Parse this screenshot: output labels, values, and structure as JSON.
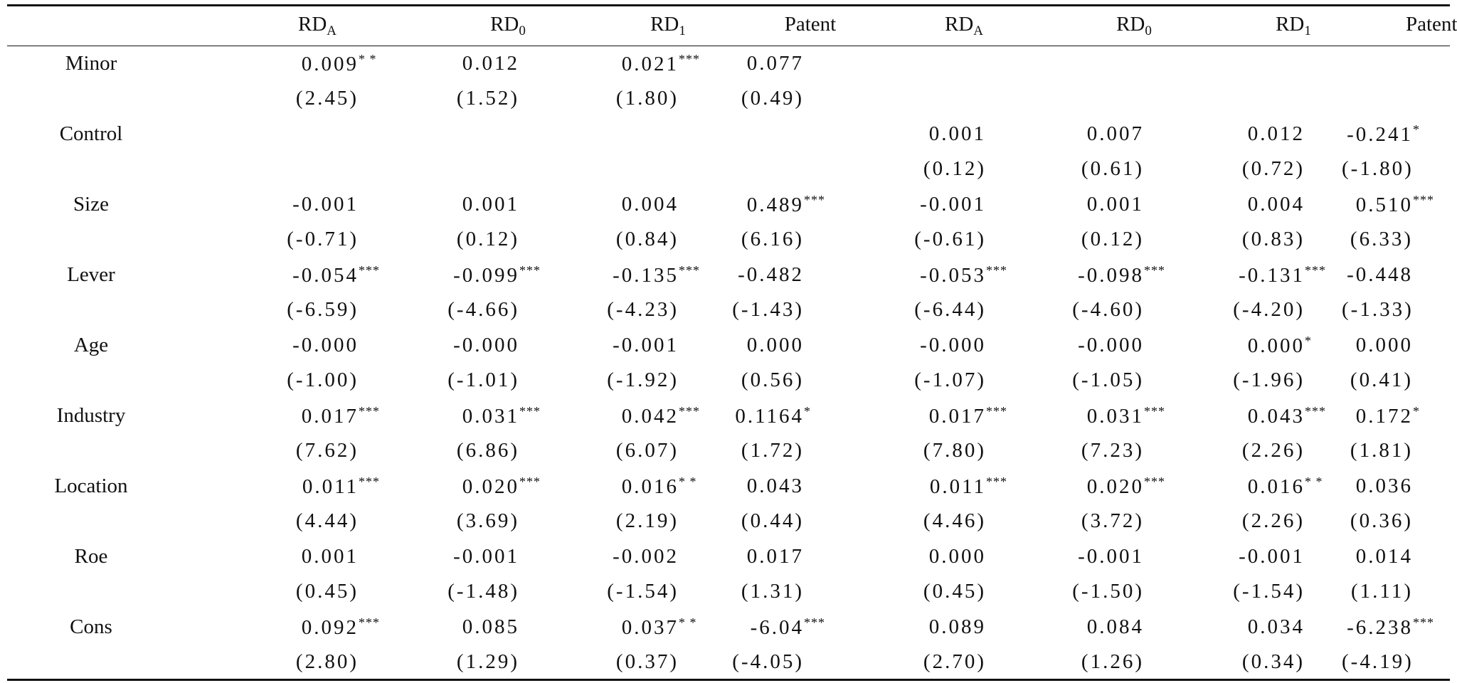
{
  "table": {
    "columns": [
      {
        "base": "RD",
        "sub": "A"
      },
      {
        "base": "RD",
        "sub": "0"
      },
      {
        "base": "RD",
        "sub": "1"
      },
      {
        "base": "Patent",
        "sub": ""
      },
      {
        "base": "RD",
        "sub": "A"
      },
      {
        "base": "RD",
        "sub": "0"
      },
      {
        "base": "RD",
        "sub": "1"
      },
      {
        "base": "Patent",
        "sub": ""
      }
    ],
    "rows": [
      {
        "variable": "Minor",
        "coef": [
          [
            "0.009",
            "* *"
          ],
          [
            "0.012",
            ""
          ],
          [
            "0.021",
            "***"
          ],
          [
            "0.077",
            ""
          ],
          [
            "",
            ""
          ],
          [
            "",
            ""
          ],
          [
            "",
            ""
          ],
          [
            "",
            ""
          ]
        ],
        "t": [
          "(2.45)",
          "(1.52)",
          "(1.80)",
          "(0.49)",
          "",
          "",
          "",
          ""
        ]
      },
      {
        "variable": "Control",
        "coef": [
          [
            "",
            ""
          ],
          [
            "",
            ""
          ],
          [
            "",
            ""
          ],
          [
            "",
            ""
          ],
          [
            "0.001",
            ""
          ],
          [
            "0.007",
            ""
          ],
          [
            "0.012",
            ""
          ],
          [
            "-0.241",
            "*"
          ]
        ],
        "t": [
          "",
          "",
          "",
          "",
          "(0.12)",
          "(0.61)",
          "(0.72)",
          "(-1.80)"
        ]
      },
      {
        "variable": "Size",
        "coef": [
          [
            "-0.001",
            ""
          ],
          [
            "0.001",
            ""
          ],
          [
            "0.004",
            ""
          ],
          [
            "0.489",
            "***"
          ],
          [
            "-0.001",
            ""
          ],
          [
            "0.001",
            ""
          ],
          [
            "0.004",
            ""
          ],
          [
            "0.510",
            "***"
          ]
        ],
        "t": [
          "(-0.71)",
          "(0.12)",
          "(0.84)",
          "(6.16)",
          "(-0.61)",
          "(0.12)",
          "(0.83)",
          "(6.33)"
        ]
      },
      {
        "variable": "Lever",
        "coef": [
          [
            "-0.054",
            "***"
          ],
          [
            "-0.099",
            "***"
          ],
          [
            "-0.135",
            "***"
          ],
          [
            "-0.482",
            ""
          ],
          [
            "-0.053",
            "***"
          ],
          [
            "-0.098",
            "***"
          ],
          [
            "-0.131",
            "***"
          ],
          [
            "-0.448",
            ""
          ]
        ],
        "t": [
          "(-6.59)",
          "(-4.66)",
          "(-4.23)",
          "(-1.43)",
          "(-6.44)",
          "(-4.60)",
          "(-4.20)",
          "(-1.33)"
        ]
      },
      {
        "variable": "Age",
        "coef": [
          [
            "-0.000",
            ""
          ],
          [
            "-0.000",
            ""
          ],
          [
            "-0.001",
            ""
          ],
          [
            "0.000",
            ""
          ],
          [
            "-0.000",
            ""
          ],
          [
            "-0.000",
            ""
          ],
          [
            "0.000",
            "*"
          ],
          [
            "0.000",
            ""
          ]
        ],
        "t": [
          "(-1.00)",
          "(-1.01)",
          "(-1.92)",
          "(0.56)",
          "(-1.07)",
          "(-1.05)",
          "(-1.96)",
          "(0.41)"
        ]
      },
      {
        "variable": "Industry",
        "coef": [
          [
            "0.017",
            "***"
          ],
          [
            "0.031",
            "***"
          ],
          [
            "0.042",
            "***"
          ],
          [
            "0.1164",
            "*"
          ],
          [
            "0.017",
            "***"
          ],
          [
            "0.031",
            "***"
          ],
          [
            "0.043",
            "***"
          ],
          [
            "0.172",
            "*"
          ]
        ],
        "t": [
          "(7.62)",
          "(6.86)",
          "(6.07)",
          "(1.72)",
          "(7.80)",
          "(7.23)",
          "(2.26)",
          "(1.81)"
        ]
      },
      {
        "variable": "Location",
        "coef": [
          [
            "0.011",
            "***"
          ],
          [
            "0.020",
            "***"
          ],
          [
            "0.016",
            "* *"
          ],
          [
            "0.043",
            ""
          ],
          [
            "0.011",
            "***"
          ],
          [
            "0.020",
            "***"
          ],
          [
            "0.016",
            "* *"
          ],
          [
            "0.036",
            ""
          ]
        ],
        "t": [
          "(4.44)",
          "(3.69)",
          "(2.19)",
          "(0.44)",
          "(4.46)",
          "(3.72)",
          "(2.26)",
          "(0.36)"
        ]
      },
      {
        "variable": "Roe",
        "coef": [
          [
            "0.001",
            ""
          ],
          [
            "-0.001",
            ""
          ],
          [
            "-0.002",
            ""
          ],
          [
            "0.017",
            ""
          ],
          [
            "0.000",
            ""
          ],
          [
            "-0.001",
            ""
          ],
          [
            "-0.001",
            ""
          ],
          [
            "0.014",
            ""
          ]
        ],
        "t": [
          "(0.45)",
          "(-1.48)",
          "(-1.54)",
          "(1.31)",
          "(0.45)",
          "(-1.50)",
          "(-1.54)",
          "(1.11)"
        ]
      },
      {
        "variable": "Cons",
        "coef": [
          [
            "0.092",
            "***"
          ],
          [
            "0.085",
            ""
          ],
          [
            "0.037",
            "* *"
          ],
          [
            "-6.04",
            "***"
          ],
          [
            "0.089",
            ""
          ],
          [
            "0.084",
            ""
          ],
          [
            "0.034",
            ""
          ],
          [
            "-6.238",
            "***"
          ]
        ],
        "t": [
          "(2.80)",
          "(1.29)",
          "(0.37)",
          "(-4.05)",
          "(2.70)",
          "(1.26)",
          "(0.34)",
          "(-4.19)"
        ]
      }
    ]
  }
}
